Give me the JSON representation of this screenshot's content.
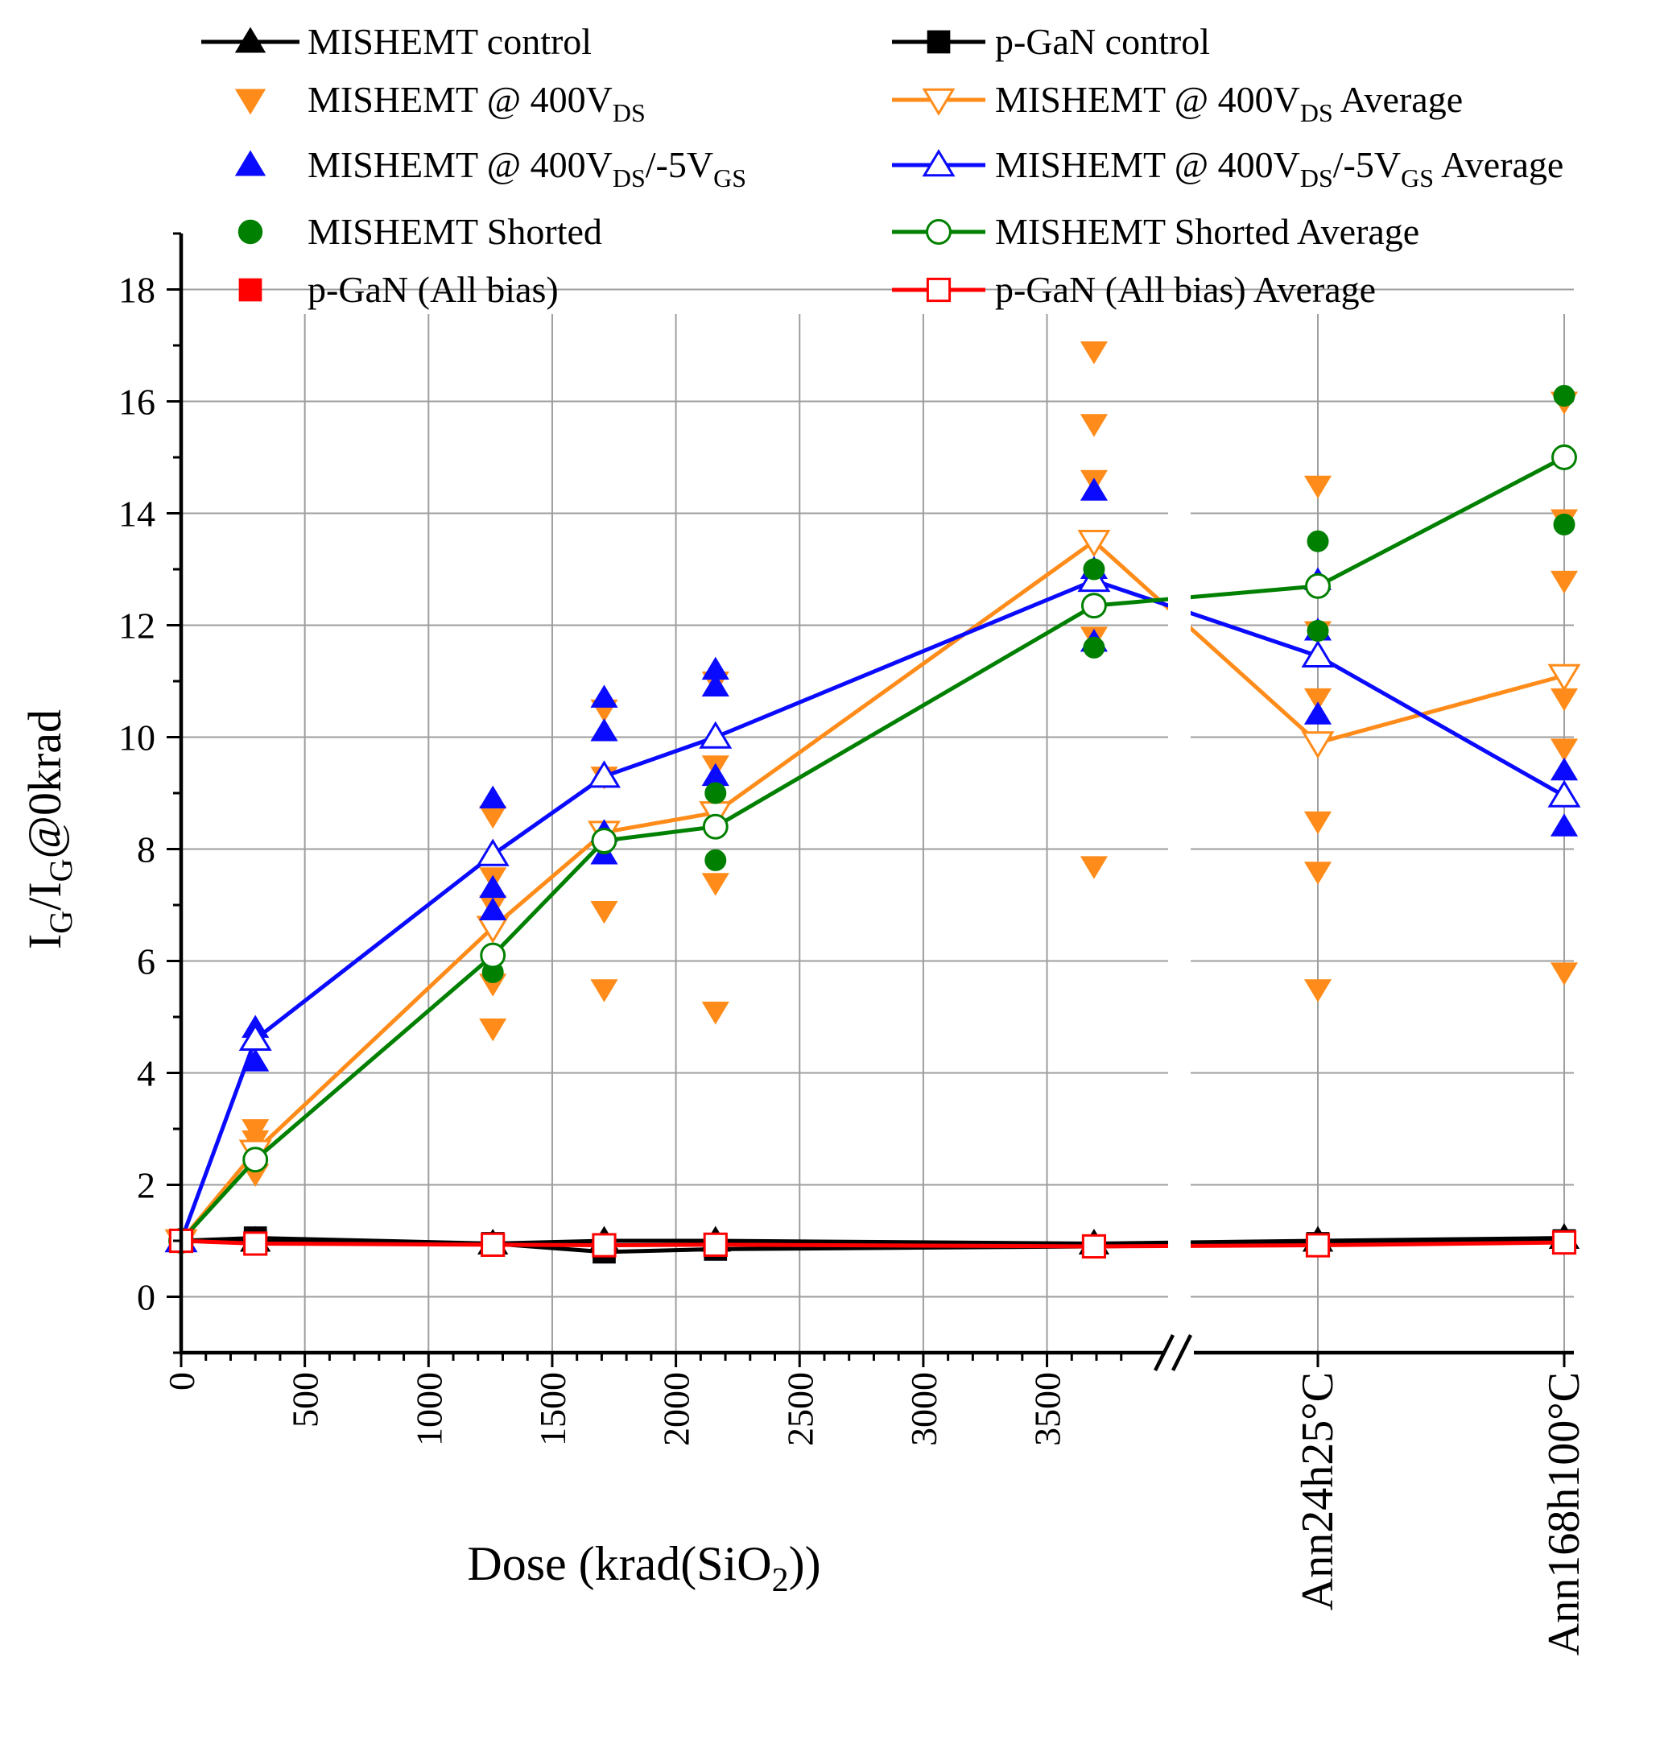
{
  "chart_data": {
    "type": "scatter",
    "ylabel": {
      "main": "I",
      "sub": "G",
      "sep": "/I",
      "sub2": "G",
      "tail": "@0krad"
    },
    "xlabel": {
      "pre": "Dose (krad(SiO",
      "sub": "2",
      "post": "))"
    },
    "ylim": [
      -1,
      19
    ],
    "xlim": [
      0,
      3800
    ],
    "y_ticks": [
      "0",
      "2",
      "4",
      "6",
      "8",
      "10",
      "12",
      "14",
      "16",
      "18"
    ],
    "x_ticks": [
      "0",
      "500",
      "1000",
      "1500",
      "2000",
      "2500",
      "3000",
      "3500"
    ],
    "category_ticks": [
      "Ann24h25°C",
      "Ann168h100°C"
    ],
    "x_positions": [
      "0",
      "300",
      "1260",
      "1710",
      "2160",
      "3690",
      "Ann24h25°C",
      "Ann168h100°C"
    ],
    "axis_break": true,
    "legend": [
      {
        "label": "MISHEMT control",
        "sub": "",
        "label2": "",
        "sub2": "",
        "label3": ""
      },
      {
        "label": "p-GaN control",
        "sub": "",
        "label2": "",
        "sub2": "",
        "label3": ""
      },
      {
        "label": "MISHEMT @ 400V",
        "sub": "DS",
        "label2": "",
        "sub2": "",
        "label3": ""
      },
      {
        "label": "MISHEMT @ 400V",
        "sub": "DS",
        "label2": " Average",
        "sub2": "",
        "label3": ""
      },
      {
        "label": "MISHEMT @ 400V",
        "sub": "DS",
        "label2": "/-5V",
        "sub2": "GS",
        "label3": ""
      },
      {
        "label": "MISHEMT @ 400V",
        "sub": "DS",
        "label2": "/-5V",
        "sub2": "GS",
        "label3": " Average"
      },
      {
        "label": "MISHEMT Shorted",
        "sub": "",
        "label2": "",
        "sub2": "",
        "label3": ""
      },
      {
        "label": "MISHEMT Shorted Average",
        "sub": "",
        "label2": "",
        "sub2": "",
        "label3": ""
      },
      {
        "label": "p-GaN (All bias)",
        "sub": "",
        "label2": "",
        "sub2": "",
        "label3": ""
      },
      {
        "label": "p-GaN (All bias) Average",
        "sub": "",
        "label2": "",
        "sub2": "",
        "label3": ""
      }
    ],
    "series": [
      {
        "name": "MISHEMT control",
        "color": "#000000",
        "marker": "triangle-up",
        "filled": true,
        "line": true,
        "points": [
          [
            0,
            1.0
          ],
          [
            300,
            1.0
          ],
          [
            1260,
            0.95
          ],
          [
            1710,
            1.0
          ],
          [
            2160,
            1.0
          ],
          [
            3690,
            0.95
          ],
          [
            "Ann24h25°C",
            1.0
          ],
          [
            "Ann168h100°C",
            1.05
          ]
        ]
      },
      {
        "name": "p-GaN control",
        "color": "#000000",
        "marker": "square",
        "filled": true,
        "line": true,
        "points": [
          [
            0,
            1.0
          ],
          [
            300,
            1.05
          ],
          [
            1260,
            0.95
          ],
          [
            1710,
            0.8
          ],
          [
            2160,
            0.85
          ],
          [
            3690,
            0.9
          ],
          [
            "Ann24h25°C",
            0.95
          ],
          [
            "Ann168h100°C",
            1.0
          ]
        ]
      },
      {
        "name": "MISHEMT @ 400VDS",
        "color": "#ff8c1a",
        "marker": "triangle-down",
        "filled": true,
        "line": false,
        "points": [
          [
            0,
            1.0
          ],
          [
            300,
            3.0
          ],
          [
            300,
            2.8
          ],
          [
            300,
            2.2
          ],
          [
            1260,
            8.6
          ],
          [
            1260,
            7.5
          ],
          [
            1260,
            7.0
          ],
          [
            1260,
            5.6
          ],
          [
            1260,
            4.8
          ],
          [
            1710,
            10.5
          ],
          [
            1710,
            9.3
          ],
          [
            1710,
            6.9
          ],
          [
            1710,
            5.5
          ],
          [
            2160,
            11.0
          ],
          [
            2160,
            9.5
          ],
          [
            2160,
            7.4
          ],
          [
            2160,
            5.1
          ],
          [
            3690,
            16.9
          ],
          [
            3690,
            15.6
          ],
          [
            3690,
            14.6
          ],
          [
            3690,
            11.8
          ],
          [
            3690,
            7.7
          ],
          [
            "Ann24h25°C",
            14.5
          ],
          [
            "Ann24h25°C",
            11.9
          ],
          [
            "Ann24h25°C",
            10.7
          ],
          [
            "Ann24h25°C",
            8.5
          ],
          [
            "Ann24h25°C",
            7.6
          ],
          [
            "Ann24h25°C",
            5.5
          ],
          [
            "Ann168h100°C",
            16.0
          ],
          [
            "Ann168h100°C",
            13.9
          ],
          [
            "Ann168h100°C",
            12.8
          ],
          [
            "Ann168h100°C",
            10.7
          ],
          [
            "Ann168h100°C",
            9.8
          ],
          [
            "Ann168h100°C",
            5.8
          ]
        ]
      },
      {
        "name": "MISHEMT @ 400VDS Average",
        "color": "#ff8c1a",
        "marker": "triangle-down",
        "filled": false,
        "line": true,
        "points": [
          [
            0,
            1.0
          ],
          [
            300,
            2.6
          ],
          [
            1260,
            6.6
          ],
          [
            1710,
            8.3
          ],
          [
            2160,
            8.65
          ],
          [
            3690,
            13.5
          ],
          [
            "Ann24h25°C",
            9.9
          ],
          [
            "Ann168h100°C",
            11.1
          ]
        ]
      },
      {
        "name": "MISHEMT @ 400VDS/-5VGS",
        "color": "#0a0aff",
        "marker": "triangle-up",
        "filled": true,
        "line": false,
        "points": [
          [
            0,
            1.0
          ],
          [
            300,
            4.8
          ],
          [
            300,
            4.2
          ],
          [
            1260,
            8.9
          ],
          [
            1260,
            7.3
          ],
          [
            1260,
            6.9
          ],
          [
            1710,
            10.7
          ],
          [
            1710,
            10.1
          ],
          [
            1710,
            8.3
          ],
          [
            1710,
            7.9
          ],
          [
            2160,
            11.2
          ],
          [
            2160,
            10.9
          ],
          [
            2160,
            9.3
          ],
          [
            3690,
            14.4
          ],
          [
            3690,
            13.0
          ],
          [
            3690,
            11.7
          ],
          [
            "Ann24h25°C",
            12.8
          ],
          [
            "Ann24h25°C",
            11.9
          ],
          [
            "Ann24h25°C",
            10.4
          ],
          [
            "Ann168h100°C",
            9.4
          ],
          [
            "Ann168h100°C",
            8.4
          ]
        ]
      },
      {
        "name": "MISHEMT @ 400VDS/-5VGS Average",
        "color": "#0a0aff",
        "marker": "triangle-up",
        "filled": false,
        "line": true,
        "points": [
          [
            0,
            1.0
          ],
          [
            300,
            4.6
          ],
          [
            1260,
            7.9
          ],
          [
            1710,
            9.3
          ],
          [
            2160,
            10.0
          ],
          [
            3690,
            12.8
          ],
          [
            "Ann24h25°C",
            11.45
          ],
          [
            "Ann168h100°C",
            8.95
          ]
        ]
      },
      {
        "name": "MISHEMT Shorted",
        "color": "#008000",
        "marker": "circle",
        "filled": true,
        "line": false,
        "points": [
          [
            0,
            1.0
          ],
          [
            1260,
            5.8
          ],
          [
            1710,
            8.1
          ],
          [
            2160,
            9.0
          ],
          [
            2160,
            7.8
          ],
          [
            3690,
            13.0
          ],
          [
            3690,
            11.6
          ],
          [
            "Ann24h25°C",
            13.5
          ],
          [
            "Ann24h25°C",
            11.9
          ],
          [
            "Ann168h100°C",
            16.1
          ],
          [
            "Ann168h100°C",
            13.8
          ]
        ]
      },
      {
        "name": "MISHEMT Shorted Average",
        "color": "#008000",
        "marker": "circle",
        "filled": false,
        "line": true,
        "points": [
          [
            0,
            1.0
          ],
          [
            300,
            2.45
          ],
          [
            1260,
            6.1
          ],
          [
            1710,
            8.15
          ],
          [
            2160,
            8.4
          ],
          [
            3690,
            12.35
          ],
          [
            "Ann24h25°C",
            12.7
          ],
          [
            "Ann168h100°C",
            15.0
          ]
        ]
      },
      {
        "name": "p-GaN (All bias)",
        "color": "#ff0000",
        "marker": "square",
        "filled": true,
        "line": false,
        "points": [
          [
            0,
            1.0
          ],
          [
            300,
            0.95
          ],
          [
            1260,
            0.9
          ],
          [
            1710,
            0.9
          ],
          [
            2160,
            0.92
          ],
          [
            3690,
            0.88
          ],
          [
            "Ann24h25°C",
            0.92
          ],
          [
            "Ann168h100°C",
            0.95
          ]
        ]
      },
      {
        "name": "p-GaN (All bias) Average",
        "color": "#ff0000",
        "marker": "square",
        "filled": false,
        "line": true,
        "points": [
          [
            0,
            1.0
          ],
          [
            300,
            0.95
          ],
          [
            1260,
            0.93
          ],
          [
            1710,
            0.92
          ],
          [
            2160,
            0.93
          ],
          [
            3690,
            0.9
          ],
          [
            "Ann24h25°C",
            0.92
          ],
          [
            "Ann168h100°C",
            0.97
          ]
        ]
      }
    ]
  }
}
